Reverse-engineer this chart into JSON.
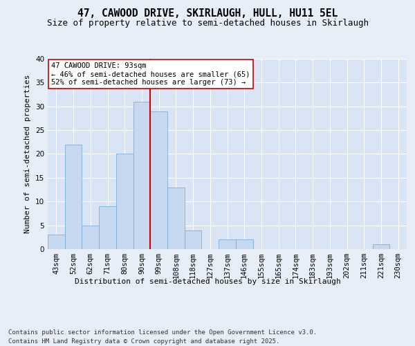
{
  "title_line1": "47, CAWOOD DRIVE, SKIRLAUGH, HULL, HU11 5EL",
  "title_line2": "Size of property relative to semi-detached houses in Skirlaugh",
  "xlabel": "Distribution of semi-detached houses by size in Skirlaugh",
  "ylabel": "Number of semi-detached properties",
  "categories": [
    "43sqm",
    "52sqm",
    "62sqm",
    "71sqm",
    "80sqm",
    "90sqm",
    "99sqm",
    "108sqm",
    "118sqm",
    "127sqm",
    "137sqm",
    "146sqm",
    "155sqm",
    "165sqm",
    "174sqm",
    "183sqm",
    "193sqm",
    "202sqm",
    "211sqm",
    "221sqm",
    "230sqm"
  ],
  "values": [
    3,
    22,
    5,
    9,
    20,
    31,
    29,
    13,
    4,
    0,
    2,
    2,
    0,
    0,
    0,
    0,
    0,
    0,
    0,
    1,
    0
  ],
  "bar_color": "#c6d9f0",
  "bar_edge_color": "#7bafd4",
  "vline_color": "#cc0000",
  "annotation_line1": "47 CAWOOD DRIVE: 93sqm",
  "annotation_line2": "← 46% of semi-detached houses are smaller (65)",
  "annotation_line3": "52% of semi-detached houses are larger (73) →",
  "annotation_box_color": "#ffffff",
  "annotation_box_edge": "#cc0000",
  "ylim": [
    0,
    40
  ],
  "yticks": [
    0,
    5,
    10,
    15,
    20,
    25,
    30,
    35,
    40
  ],
  "background_color": "#e8eef7",
  "plot_background": "#d9e4f5",
  "footer_line1": "Contains HM Land Registry data © Crown copyright and database right 2025.",
  "footer_line2": "Contains public sector information licensed under the Open Government Licence v3.0.",
  "title_fontsize": 10.5,
  "subtitle_fontsize": 9,
  "axis_label_fontsize": 8,
  "tick_fontsize": 7.5,
  "annotation_fontsize": 7.5,
  "footer_fontsize": 6.5,
  "ylabel_fontsize": 8
}
